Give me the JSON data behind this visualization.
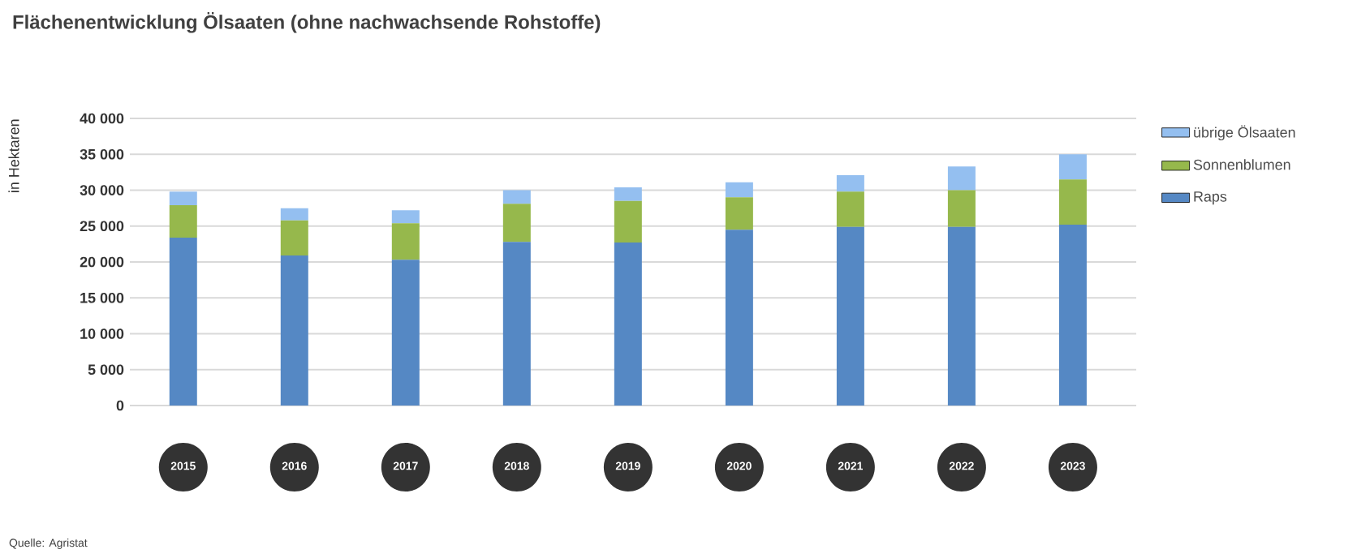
{
  "chart_data": {
    "type": "bar",
    "stacked": true,
    "title": "Flächenentwicklung Ölsaaten (ohne nachwachsende Rohstoffe)",
    "ylabel": "in Hektaren",
    "categories": [
      "2015",
      "2016",
      "2017",
      "2018",
      "2019",
      "2020",
      "2021",
      "2022",
      "2023"
    ],
    "series": [
      {
        "name": "Raps",
        "color": "#5588c4",
        "values": [
          23400,
          20900,
          20300,
          22800,
          22700,
          24500,
          24900,
          24900,
          25200
        ]
      },
      {
        "name": "Sonnenblumen",
        "color": "#96b84c",
        "values": [
          4500,
          4900,
          5100,
          5300,
          5800,
          4500,
          4900,
          5100,
          6300
        ]
      },
      {
        "name": "übrige Ölsaaten",
        "color": "#94bff0",
        "values": [
          1900,
          1700,
          1800,
          1900,
          1900,
          2100,
          2300,
          3300,
          3500
        ]
      }
    ],
    "ylim": [
      0,
      40000
    ],
    "yticks": [
      0,
      {
        "value": 5000,
        "label": "5 000"
      },
      {
        "value": 10000,
        "label": "10 000"
      },
      {
        "value": 15000,
        "label": "15 000"
      },
      {
        "value": 20000,
        "label": "20 000"
      },
      {
        "value": 25000,
        "label": "25 000"
      },
      {
        "value": 30000,
        "label": "30 000"
      },
      {
        "value": 35000,
        "label": "35 000"
      },
      {
        "value": 40000,
        "label": "40 000"
      }
    ],
    "grid": "y",
    "legend": "right",
    "annotations": [
      "Quelle: Agristat"
    ]
  }
}
